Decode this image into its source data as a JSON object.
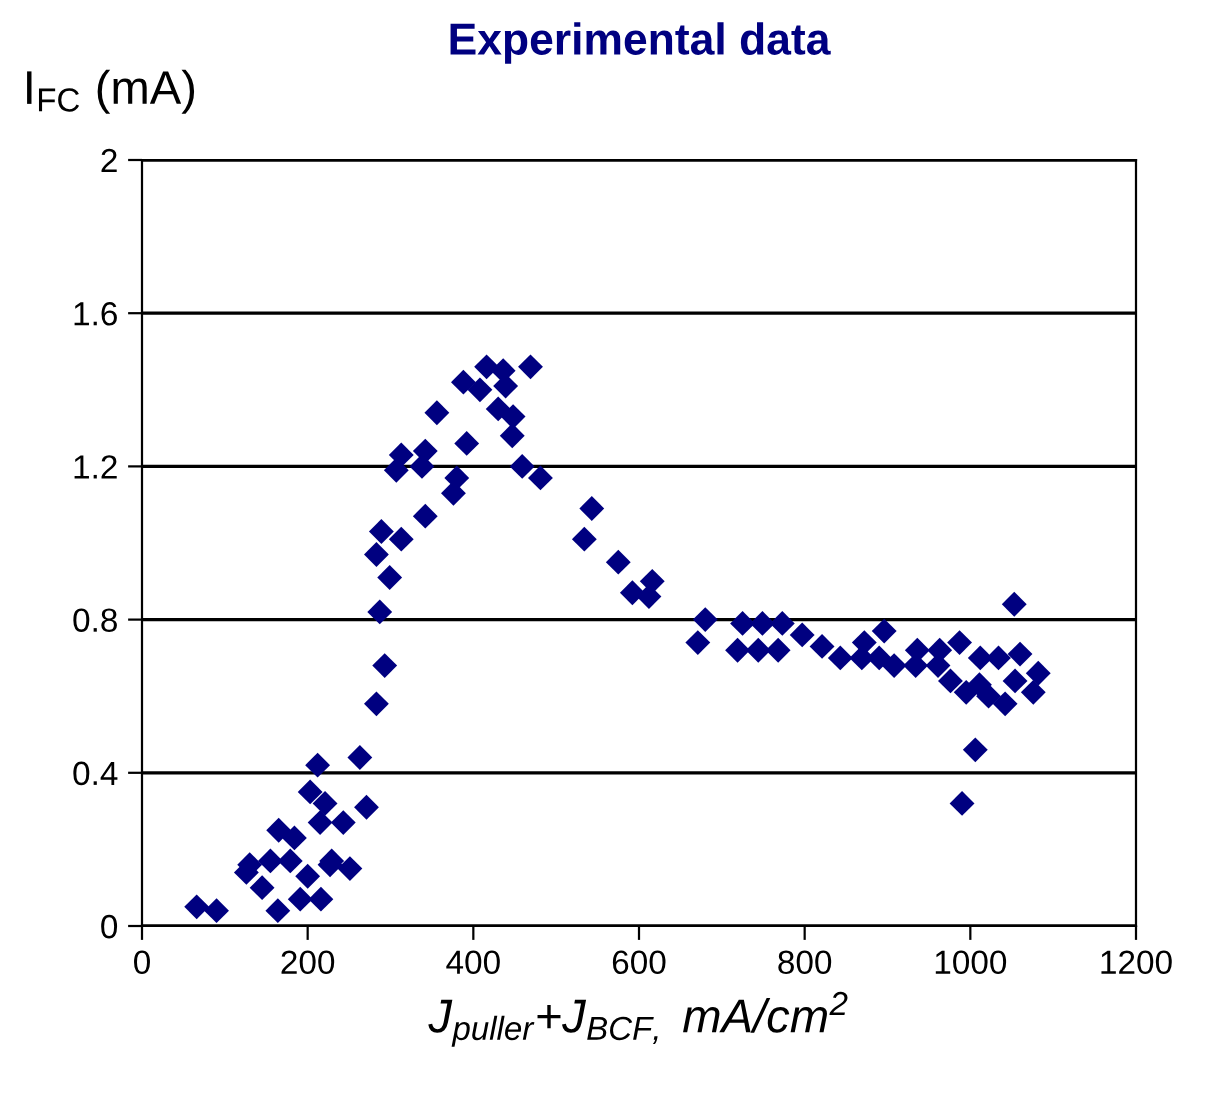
{
  "chart_data": {
    "type": "scatter",
    "title": "Experimental data",
    "ylabel": "I$_{FC}$ (mA)",
    "xlabel": "J$_{puller}$+J$_{BCF,}$ mA/cm$^{2}$",
    "x": [
      66,
      90,
      126,
      130,
      145,
      155,
      165,
      164,
      179,
      184,
      191,
      200,
      203,
      212,
      215,
      221,
      216,
      229,
      227,
      243,
      251,
      263,
      271,
      283,
      293,
      287,
      283,
      289,
      299,
      313,
      307,
      313,
      338,
      342,
      342,
      356,
      376,
      380,
      392,
      388,
      408,
      416,
      436,
      439,
      430,
      448,
      447,
      459,
      469,
      481,
      543,
      534,
      575,
      592,
      616,
      612,
      680,
      671,
      725,
      719,
      749,
      744,
      773,
      768,
      797,
      821,
      843,
      872,
      869,
      896,
      890,
      908,
      936,
      934,
      963,
      961,
      987,
      976,
      995,
      1012,
      1011,
      1034,
      1022,
      1042,
      1060,
      1054,
      1082,
      1076,
      1053,
      1006,
      990
    ],
    "values": [
      0.05,
      0.04,
      0.14,
      0.16,
      0.1,
      0.17,
      0.25,
      0.04,
      0.17,
      0.23,
      0.07,
      0.13,
      0.35,
      0.42,
      0.27,
      0.32,
      0.07,
      0.17,
      0.16,
      0.27,
      0.15,
      0.44,
      0.31,
      0.58,
      0.68,
      0.82,
      0.97,
      1.03,
      0.91,
      1.01,
      1.19,
      1.23,
      1.2,
      1.24,
      1.07,
      1.34,
      1.13,
      1.17,
      1.26,
      1.42,
      1.4,
      1.46,
      1.45,
      1.41,
      1.35,
      1.33,
      1.28,
      1.2,
      1.46,
      1.17,
      1.09,
      1.01,
      0.95,
      0.87,
      0.9,
      0.86,
      0.8,
      0.74,
      0.79,
      0.72,
      0.79,
      0.72,
      0.79,
      0.72,
      0.76,
      0.73,
      0.7,
      0.74,
      0.7,
      0.77,
      0.7,
      0.68,
      0.72,
      0.68,
      0.72,
      0.68,
      0.74,
      0.64,
      0.61,
      0.7,
      0.63,
      0.7,
      0.6,
      0.58,
      0.71,
      0.64,
      0.66,
      0.61,
      0.84,
      0.46,
      0.32
    ],
    "color": "#000080",
    "marker": "diamond",
    "xlim": [
      0,
      1200
    ],
    "xticks": [
      0,
      200,
      400,
      600,
      800,
      1000,
      1200
    ],
    "ylim": [
      0,
      2
    ],
    "yticks": [
      0,
      0.4,
      0.8,
      1.2,
      1.6,
      2
    ],
    "grid": "y",
    "legend": false
  }
}
